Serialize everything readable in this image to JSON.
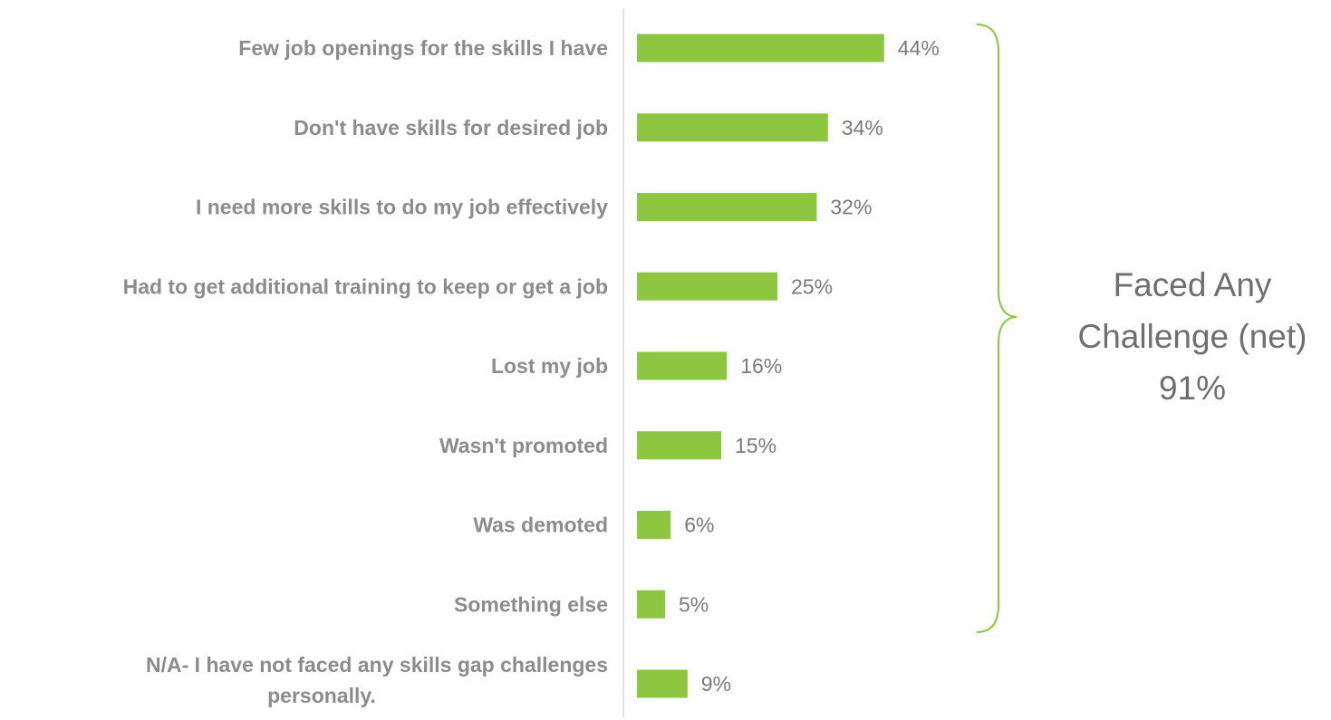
{
  "chart_data": {
    "type": "bar",
    "orientation": "horizontal",
    "title": "",
    "xlabel": "",
    "ylabel": "",
    "categories": [
      [
        "Few job openings for the skills I have"
      ],
      [
        "Don't have skills for desired job"
      ],
      [
        "I need more skills to do my job effectively"
      ],
      [
        "Had to get additional training to keep or get a job"
      ],
      [
        "Lost my job"
      ],
      [
        "Wasn't promoted"
      ],
      [
        "Was demoted"
      ],
      [
        "Something else"
      ],
      [
        "N/A- I have not faced any skills gap challenges",
        "personally."
      ]
    ],
    "values": [
      44,
      34,
      32,
      25,
      16,
      15,
      6,
      5,
      9
    ],
    "value_labels": [
      "44%",
      "34%",
      "32%",
      "25%",
      "16%",
      "15%",
      "6%",
      "5%",
      "9%"
    ],
    "xlim": [
      0,
      100
    ],
    "grid": false,
    "legend": "none",
    "bar_color": "#8dc63f",
    "bracket_color": "#8dc63f",
    "annotation": {
      "lines": [
        "Faced Any",
        "Challenge (net)",
        "91%"
      ],
      "value": 91,
      "spans_categories": [
        0,
        7
      ]
    }
  }
}
